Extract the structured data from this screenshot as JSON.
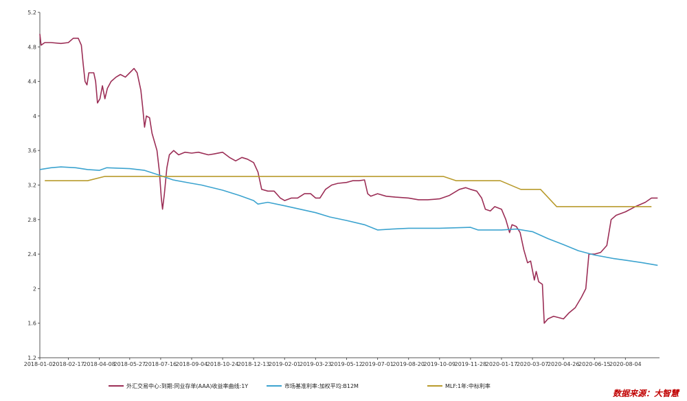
{
  "chart_data": {
    "type": "line",
    "title": "",
    "xlabel": "",
    "ylabel": "",
    "ylim": [
      1.2,
      5.2
    ],
    "yticks": [
      "1.2",
      "1.6",
      "2",
      "2.4",
      "2.8",
      "3.2",
      "3.6",
      "4",
      "4.4",
      "4.8",
      "5.2"
    ],
    "xlim": [
      "2018-01-02",
      "2020-09-28"
    ],
    "xticks": [
      "2018-01-02",
      "2018-02-17",
      "2018-04-08",
      "2018-05-27",
      "2018-07-16",
      "2018-09-04",
      "2018-10-24",
      "2018-12-13",
      "2019-02-01",
      "2019-03-23",
      "2019-05-12",
      "2019-07-01",
      "2019-08-20",
      "2019-10-09",
      "2019-11-28",
      "2020-01-17",
      "2020-03-07",
      "2020-04-26",
      "2020-06-15",
      "2020-08-04"
    ],
    "grid": false,
    "legend_position": "bottom",
    "series": [
      {
        "name": "外汇交易中心:到期:同业存单(AAA)收益率曲线:1Y",
        "color": "#9b2d55",
        "points": [
          [
            "2018-01-02",
            4.95
          ],
          [
            "2018-01-04",
            4.82
          ],
          [
            "2018-01-10",
            4.85
          ],
          [
            "2018-01-20",
            4.85
          ],
          [
            "2018-02-05",
            4.84
          ],
          [
            "2018-02-17",
            4.85
          ],
          [
            "2018-02-25",
            4.9
          ],
          [
            "2018-03-05",
            4.9
          ],
          [
            "2018-03-10",
            4.82
          ],
          [
            "2018-03-13",
            4.6
          ],
          [
            "2018-03-16",
            4.4
          ],
          [
            "2018-03-19",
            4.36
          ],
          [
            "2018-03-22",
            4.5
          ],
          [
            "2018-03-30",
            4.5
          ],
          [
            "2018-04-02",
            4.4
          ],
          [
            "2018-04-05",
            4.15
          ],
          [
            "2018-04-09",
            4.2
          ],
          [
            "2018-04-13",
            4.35
          ],
          [
            "2018-04-17",
            4.2
          ],
          [
            "2018-04-21",
            4.32
          ],
          [
            "2018-04-27",
            4.4
          ],
          [
            "2018-05-05",
            4.45
          ],
          [
            "2018-05-12",
            4.48
          ],
          [
            "2018-05-20",
            4.45
          ],
          [
            "2018-05-27",
            4.5
          ],
          [
            "2018-06-03",
            4.55
          ],
          [
            "2018-06-08",
            4.5
          ],
          [
            "2018-06-11",
            4.4
          ],
          [
            "2018-06-14",
            4.3
          ],
          [
            "2018-06-17",
            4.1
          ],
          [
            "2018-06-20",
            3.87
          ],
          [
            "2018-06-23",
            4.0
          ],
          [
            "2018-06-28",
            3.98
          ],
          [
            "2018-07-02",
            3.8
          ],
          [
            "2018-07-06",
            3.7
          ],
          [
            "2018-07-10",
            3.6
          ],
          [
            "2018-07-14",
            3.35
          ],
          [
            "2018-07-17",
            3.05
          ],
          [
            "2018-07-19",
            2.92
          ],
          [
            "2018-07-22",
            3.1
          ],
          [
            "2018-07-26",
            3.4
          ],
          [
            "2018-07-30",
            3.55
          ],
          [
            "2018-08-06",
            3.6
          ],
          [
            "2018-08-14",
            3.55
          ],
          [
            "2018-08-24",
            3.58
          ],
          [
            "2018-09-04",
            3.57
          ],
          [
            "2018-09-15",
            3.58
          ],
          [
            "2018-10-01",
            3.55
          ],
          [
            "2018-10-10",
            3.56
          ],
          [
            "2018-10-24",
            3.58
          ],
          [
            "2018-11-04",
            3.52
          ],
          [
            "2018-11-14",
            3.48
          ],
          [
            "2018-11-24",
            3.52
          ],
          [
            "2018-12-03",
            3.5
          ],
          [
            "2018-12-13",
            3.46
          ],
          [
            "2018-12-20",
            3.35
          ],
          [
            "2018-12-26",
            3.15
          ],
          [
            "2019-01-05",
            3.13
          ],
          [
            "2019-01-15",
            3.13
          ],
          [
            "2019-01-25",
            3.05
          ],
          [
            "2019-02-01",
            3.02
          ],
          [
            "2019-02-12",
            3.05
          ],
          [
            "2019-02-22",
            3.05
          ],
          [
            "2019-03-05",
            3.1
          ],
          [
            "2019-03-15",
            3.1
          ],
          [
            "2019-03-23",
            3.05
          ],
          [
            "2019-03-30",
            3.05
          ],
          [
            "2019-04-08",
            3.15
          ],
          [
            "2019-04-18",
            3.2
          ],
          [
            "2019-04-28",
            3.22
          ],
          [
            "2019-05-12",
            3.23
          ],
          [
            "2019-05-22",
            3.25
          ],
          [
            "2019-06-01",
            3.25
          ],
          [
            "2019-06-10",
            3.26
          ],
          [
            "2019-06-15",
            3.1
          ],
          [
            "2019-06-20",
            3.07
          ],
          [
            "2019-07-01",
            3.1
          ],
          [
            "2019-07-15",
            3.07
          ],
          [
            "2019-07-30",
            3.06
          ],
          [
            "2019-08-20",
            3.05
          ],
          [
            "2019-09-05",
            3.03
          ],
          [
            "2019-09-20",
            3.03
          ],
          [
            "2019-10-09",
            3.04
          ],
          [
            "2019-10-25",
            3.08
          ],
          [
            "2019-11-10",
            3.15
          ],
          [
            "2019-11-20",
            3.17
          ],
          [
            "2019-11-28",
            3.15
          ],
          [
            "2019-12-08",
            3.13
          ],
          [
            "2019-12-16",
            3.05
          ],
          [
            "2019-12-22",
            2.92
          ],
          [
            "2019-12-30",
            2.9
          ],
          [
            "2020-01-06",
            2.95
          ],
          [
            "2020-01-17",
            2.92
          ],
          [
            "2020-01-24",
            2.8
          ],
          [
            "2020-01-30",
            2.65
          ],
          [
            "2020-02-03",
            2.74
          ],
          [
            "2020-02-10",
            2.72
          ],
          [
            "2020-02-16",
            2.65
          ],
          [
            "2020-02-22",
            2.45
          ],
          [
            "2020-02-28",
            2.3
          ],
          [
            "2020-03-04",
            2.32
          ],
          [
            "2020-03-10",
            2.1
          ],
          [
            "2020-03-13",
            2.2
          ],
          [
            "2020-03-17",
            2.08
          ],
          [
            "2020-03-23",
            2.05
          ],
          [
            "2020-03-26",
            1.6
          ],
          [
            "2020-04-01",
            1.65
          ],
          [
            "2020-04-10",
            1.68
          ],
          [
            "2020-04-26",
            1.65
          ],
          [
            "2020-05-05",
            1.72
          ],
          [
            "2020-05-15",
            1.78
          ],
          [
            "2020-05-25",
            1.9
          ],
          [
            "2020-06-01",
            2.0
          ],
          [
            "2020-06-06",
            2.4
          ],
          [
            "2020-06-15",
            2.4
          ],
          [
            "2020-06-25",
            2.42
          ],
          [
            "2020-07-05",
            2.5
          ],
          [
            "2020-07-12",
            2.8
          ],
          [
            "2020-07-20",
            2.85
          ],
          [
            "2020-08-04",
            2.89
          ],
          [
            "2020-08-20",
            2.95
          ],
          [
            "2020-09-05",
            3.0
          ],
          [
            "2020-09-15",
            3.05
          ],
          [
            "2020-09-25",
            3.05
          ]
        ]
      },
      {
        "name": "市场基准利率:加权平均:B12M",
        "color": "#3ba3cf",
        "points": [
          [
            "2018-01-02",
            3.38
          ],
          [
            "2018-01-20",
            3.4
          ],
          [
            "2018-02-05",
            3.41
          ],
          [
            "2018-03-01",
            3.4
          ],
          [
            "2018-03-20",
            3.38
          ],
          [
            "2018-04-08",
            3.37
          ],
          [
            "2018-04-20",
            3.4
          ],
          [
            "2018-05-27",
            3.39
          ],
          [
            "2018-06-20",
            3.37
          ],
          [
            "2018-07-16",
            3.31
          ],
          [
            "2018-08-05",
            3.26
          ],
          [
            "2018-09-04",
            3.22
          ],
          [
            "2018-09-20",
            3.2
          ],
          [
            "2018-10-24",
            3.14
          ],
          [
            "2018-11-20",
            3.08
          ],
          [
            "2018-12-13",
            3.02
          ],
          [
            "2018-12-20",
            2.98
          ],
          [
            "2019-01-05",
            3.0
          ],
          [
            "2019-02-01",
            2.96
          ],
          [
            "2019-03-23",
            2.88
          ],
          [
            "2019-04-15",
            2.83
          ],
          [
            "2019-05-12",
            2.79
          ],
          [
            "2019-06-10",
            2.74
          ],
          [
            "2019-07-01",
            2.68
          ],
          [
            "2019-07-25",
            2.69
          ],
          [
            "2019-08-20",
            2.7
          ],
          [
            "2019-10-09",
            2.7
          ],
          [
            "2019-11-28",
            2.71
          ],
          [
            "2019-12-10",
            2.68
          ],
          [
            "2020-01-17",
            2.68
          ],
          [
            "2020-02-10",
            2.69
          ],
          [
            "2020-03-07",
            2.66
          ],
          [
            "2020-04-01",
            2.58
          ],
          [
            "2020-04-26",
            2.51
          ],
          [
            "2020-05-20",
            2.44
          ],
          [
            "2020-06-15",
            2.39
          ],
          [
            "2020-07-15",
            2.35
          ],
          [
            "2020-08-04",
            2.33
          ],
          [
            "2020-09-01",
            2.3
          ],
          [
            "2020-09-25",
            2.27
          ]
        ]
      },
      {
        "name": "MLF:1年:中标利率",
        "color": "#b89a2b",
        "points": [
          [
            "2018-01-10",
            3.25
          ],
          [
            "2018-03-20",
            3.25
          ],
          [
            "2018-04-17",
            3.3
          ],
          [
            "2019-10-15",
            3.3
          ],
          [
            "2019-11-05",
            3.25
          ],
          [
            "2020-01-15",
            3.25
          ],
          [
            "2020-02-17",
            3.15
          ],
          [
            "2020-03-20",
            3.15
          ],
          [
            "2020-04-15",
            2.95
          ],
          [
            "2020-09-15",
            2.95
          ]
        ]
      }
    ]
  },
  "source_label": "数据来源：大智慧"
}
